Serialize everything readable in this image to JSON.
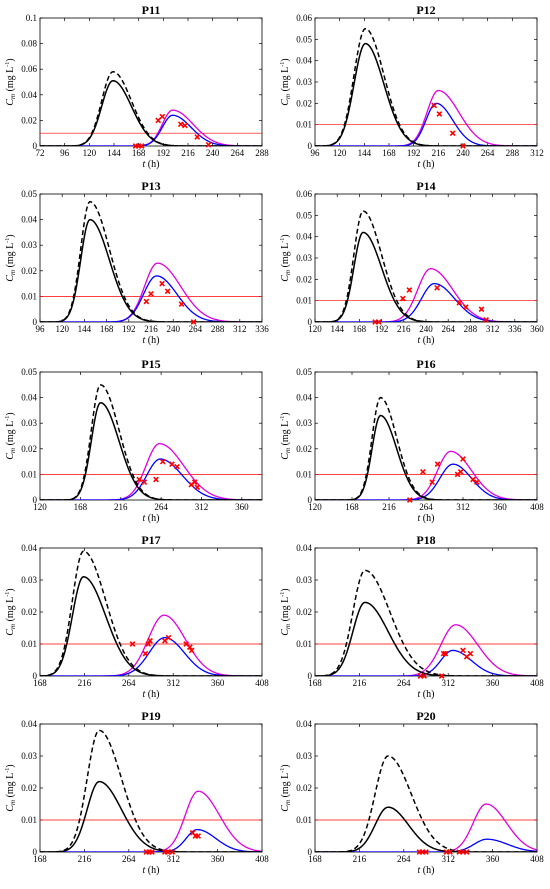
{
  "colors": {
    "black_solid": "#000000",
    "black_dashed": "#000000",
    "blue": "#0000ff",
    "magenta": "#e000e0",
    "threshold": "#ff0000",
    "observed": "#ff0000"
  },
  "chart_data": [
    {
      "type": "line",
      "title": "P11",
      "xlabel": "t (h)",
      "ylabel": "C_m (mg L^-1)",
      "xlim": [
        72,
        288
      ],
      "ylim": [
        0,
        0.1
      ],
      "xticks": [
        "72",
        "96",
        "120",
        "144",
        "168",
        "192",
        "216",
        "240",
        "264",
        "288"
      ],
      "yticks": [
        "0",
        "0.02",
        "0.04",
        "0.06",
        "0.08",
        "0.1"
      ],
      "threshold": 0.01,
      "grid": false,
      "legend": "none",
      "curves": {
        "black_solid": {
          "peak_x": 143,
          "peak_y": 0.051,
          "sigma_left": 11,
          "sigma_right": 18
        },
        "black_dashed": {
          "peak_x": 143,
          "peak_y": 0.058,
          "sigma_left": 11,
          "sigma_right": 18
        },
        "blue": {
          "peak_x": 201,
          "peak_y": 0.024,
          "sigma_left": 10,
          "sigma_right": 18
        },
        "magenta": {
          "peak_x": 201,
          "peak_y": 0.028,
          "sigma_left": 10,
          "sigma_right": 20
        }
      },
      "observed": [
        [
          165,
          0
        ],
        [
          168,
          0
        ],
        [
          171,
          0
        ],
        [
          187,
          0.02
        ],
        [
          191,
          0.023
        ],
        [
          209,
          0.017
        ],
        [
          213,
          0.016
        ],
        [
          225,
          0.007
        ],
        [
          236,
          0.001
        ]
      ]
    },
    {
      "type": "line",
      "title": "P12",
      "xlabel": "t (h)",
      "ylabel": "C_m (mg L^-1)",
      "xlim": [
        96,
        312
      ],
      "ylim": [
        0,
        0.06
      ],
      "xticks": [
        "96",
        "120",
        "144",
        "168",
        "192",
        "216",
        "240",
        "264",
        "288",
        "312"
      ],
      "yticks": [
        "0",
        "0.01",
        "0.02",
        "0.03",
        "0.04",
        "0.05",
        "0.06"
      ],
      "threshold": 0.01,
      "grid": false,
      "legend": "none",
      "curves": {
        "black_solid": {
          "peak_x": 145,
          "peak_y": 0.048,
          "sigma_left": 11,
          "sigma_right": 18
        },
        "black_dashed": {
          "peak_x": 145,
          "peak_y": 0.055,
          "sigma_left": 11,
          "sigma_right": 18
        },
        "blue": {
          "peak_x": 214,
          "peak_y": 0.02,
          "sigma_left": 10,
          "sigma_right": 16
        },
        "magenta": {
          "peak_x": 216,
          "peak_y": 0.026,
          "sigma_left": 11,
          "sigma_right": 20
        }
      },
      "observed": [
        [
          212,
          0.019
        ],
        [
          217,
          0.015
        ],
        [
          230,
          0.006
        ],
        [
          240,
          0
        ]
      ]
    },
    {
      "type": "line",
      "title": "P13",
      "xlabel": "t (h)",
      "ylabel": "C_m (mg L^-1)",
      "xlim": [
        96,
        336
      ],
      "ylim": [
        0,
        0.05
      ],
      "xticks": [
        "96",
        "120",
        "144",
        "168",
        "192",
        "216",
        "240",
        "264",
        "288",
        "312",
        "336"
      ],
      "yticks": [
        "0",
        "0.01",
        "0.02",
        "0.03",
        "0.04",
        "0.05"
      ],
      "threshold": 0.01,
      "grid": false,
      "legend": "none",
      "curves": {
        "black_solid": {
          "peak_x": 150,
          "peak_y": 0.04,
          "sigma_left": 10,
          "sigma_right": 21
        },
        "black_dashed": {
          "peak_x": 150,
          "peak_y": 0.047,
          "sigma_left": 10,
          "sigma_right": 21
        },
        "blue": {
          "peak_x": 222,
          "peak_y": 0.018,
          "sigma_left": 14,
          "sigma_right": 22
        },
        "magenta": {
          "peak_x": 223,
          "peak_y": 0.023,
          "sigma_left": 14,
          "sigma_right": 25
        }
      },
      "observed": [
        [
          211,
          0.008
        ],
        [
          216,
          0.011
        ],
        [
          228,
          0.015
        ],
        [
          234,
          0.012
        ],
        [
          249,
          0.007
        ],
        [
          262,
          0
        ]
      ]
    },
    {
      "type": "line",
      "title": "P14",
      "xlabel": "t (h)",
      "ylabel": "C_m (mg L^-1)",
      "xlim": [
        120,
        360
      ],
      "ylim": [
        0,
        0.06
      ],
      "xticks": [
        "120",
        "144",
        "168",
        "192",
        "216",
        "240",
        "264",
        "288",
        "312",
        "336",
        "360"
      ],
      "yticks": [
        "0",
        "0.01",
        "0.02",
        "0.03",
        "0.04",
        "0.05",
        "0.06"
      ],
      "threshold": 0.01,
      "grid": false,
      "legend": "none",
      "curves": {
        "black_solid": {
          "peak_x": 172,
          "peak_y": 0.042,
          "sigma_left": 10,
          "sigma_right": 20
        },
        "black_dashed": {
          "peak_x": 172,
          "peak_y": 0.052,
          "sigma_left": 10,
          "sigma_right": 20
        },
        "blue": {
          "peak_x": 249,
          "peak_y": 0.018,
          "sigma_left": 14,
          "sigma_right": 22
        },
        "magenta": {
          "peak_x": 245,
          "peak_y": 0.025,
          "sigma_left": 14,
          "sigma_right": 24
        }
      },
      "observed": [
        [
          185,
          0
        ],
        [
          189,
          0
        ],
        [
          215,
          0.011
        ],
        [
          222,
          0.015
        ],
        [
          252,
          0.016
        ],
        [
          276,
          0.009
        ],
        [
          283,
          0.007
        ],
        [
          300,
          0.006
        ],
        [
          305,
          0.001
        ]
      ]
    },
    {
      "type": "line",
      "title": "P15",
      "xlabel": "t (h)",
      "ylabel": "C_m (mg L^-1)",
      "xlim": [
        120,
        384
      ],
      "ylim": [
        0,
        0.05
      ],
      "xticks": [
        "120",
        "168",
        "216",
        "264",
        "312",
        "360"
      ],
      "yticks": [
        "0",
        "0.01",
        "0.02",
        "0.03",
        "0.04",
        "0.05"
      ],
      "threshold": 0.01,
      "grid": false,
      "legend": "none",
      "curves": {
        "black_solid": {
          "peak_x": 192,
          "peak_y": 0.038,
          "sigma_left": 11,
          "sigma_right": 22
        },
        "black_dashed": {
          "peak_x": 192,
          "peak_y": 0.045,
          "sigma_left": 11,
          "sigma_right": 22
        },
        "blue": {
          "peak_x": 263,
          "peak_y": 0.016,
          "sigma_left": 16,
          "sigma_right": 26
        },
        "magenta": {
          "peak_x": 262,
          "peak_y": 0.022,
          "sigma_left": 16,
          "sigma_right": 29
        }
      },
      "observed": [
        [
          238,
          0.008
        ],
        [
          244,
          0.007
        ],
        [
          258,
          0.008
        ],
        [
          266,
          0.015
        ],
        [
          277,
          0.014
        ],
        [
          283,
          0.013
        ],
        [
          300,
          0.006
        ],
        [
          304,
          0.007
        ],
        [
          307,
          0.005
        ]
      ]
    },
    {
      "type": "line",
      "title": "P16",
      "xlabel": "t (h)",
      "ylabel": "C_m (mg L^-1)",
      "xlim": [
        120,
        408
      ],
      "ylim": [
        0,
        0.05
      ],
      "xticks": [
        "120",
        "168",
        "216",
        "264",
        "312",
        "360",
        "408"
      ],
      "yticks": [
        "0",
        "0.01",
        "0.02",
        "0.03",
        "0.04",
        "0.05"
      ],
      "threshold": 0.01,
      "grid": false,
      "legend": "none",
      "curves": {
        "black_solid": {
          "peak_x": 205,
          "peak_y": 0.033,
          "sigma_left": 11,
          "sigma_right": 21
        },
        "black_dashed": {
          "peak_x": 205,
          "peak_y": 0.04,
          "sigma_left": 11,
          "sigma_right": 21
        },
        "blue": {
          "peak_x": 299,
          "peak_y": 0.014,
          "sigma_left": 17,
          "sigma_right": 24
        },
        "magenta": {
          "peak_x": 296,
          "peak_y": 0.019,
          "sigma_left": 17,
          "sigma_right": 27
        }
      },
      "observed": [
        [
          243,
          0
        ],
        [
          260,
          0.011
        ],
        [
          272,
          0.007
        ],
        [
          279,
          0.014
        ],
        [
          305,
          0.01
        ],
        [
          309,
          0.011
        ],
        [
          312,
          0.016
        ],
        [
          325,
          0.008
        ],
        [
          330,
          0.007
        ]
      ]
    },
    {
      "type": "line",
      "title": "P17",
      "xlabel": "t (h)",
      "ylabel": "C_m (mg L^-1)",
      "xlim": [
        168,
        408
      ],
      "ylim": [
        0,
        0.04
      ],
      "xticks": [
        "168",
        "216",
        "264",
        "312",
        "360",
        "408"
      ],
      "yticks": [
        "0",
        "0.01",
        "0.02",
        "0.03",
        "0.04"
      ],
      "threshold": 0.01,
      "grid": false,
      "legend": "none",
      "curves": {
        "black_solid": {
          "peak_x": 215,
          "peak_y": 0.031,
          "sigma_left": 12,
          "sigma_right": 24
        },
        "black_dashed": {
          "peak_x": 215,
          "peak_y": 0.039,
          "sigma_left": 12,
          "sigma_right": 24
        },
        "blue": {
          "peak_x": 303,
          "peak_y": 0.012,
          "sigma_left": 17,
          "sigma_right": 21
        },
        "magenta": {
          "peak_x": 302,
          "peak_y": 0.019,
          "sigma_left": 17,
          "sigma_right": 23
        }
      },
      "observed": [
        [
          268,
          0.01
        ],
        [
          282,
          0.007
        ],
        [
          285,
          0.01
        ],
        [
          287,
          0.011
        ],
        [
          303,
          0.011
        ],
        [
          307,
          0.012
        ],
        [
          326,
          0.01
        ],
        [
          330,
          0.009
        ],
        [
          332,
          0.008
        ]
      ]
    },
    {
      "type": "line",
      "title": "P18",
      "xlabel": "t (h)",
      "ylabel": "C_m (mg L^-1)",
      "xlim": [
        168,
        408
      ],
      "ylim": [
        0,
        0.04
      ],
      "xticks": [
        "168",
        "216",
        "264",
        "312",
        "360",
        "408"
      ],
      "yticks": [
        "0",
        "0.01",
        "0.02",
        "0.03",
        "0.04"
      ],
      "threshold": 0.01,
      "grid": false,
      "legend": "none",
      "curves": {
        "black_solid": {
          "peak_x": 222,
          "peak_y": 0.023,
          "sigma_left": 13,
          "sigma_right": 25
        },
        "black_dashed": {
          "peak_x": 222,
          "peak_y": 0.033,
          "sigma_left": 13,
          "sigma_right": 27
        },
        "blue": {
          "peak_x": 317,
          "peak_y": 0.008,
          "sigma_left": 13,
          "sigma_right": 20
        },
        "magenta": {
          "peak_x": 320,
          "peak_y": 0.016,
          "sigma_left": 16,
          "sigma_right": 24
        }
      },
      "observed": [
        [
          282,
          0
        ],
        [
          286,
          0
        ],
        [
          305,
          0
        ],
        [
          307,
          0.007
        ],
        [
          309,
          0.007
        ],
        [
          328,
          0.008
        ],
        [
          332,
          0.006
        ],
        [
          336,
          0.007
        ]
      ]
    },
    {
      "type": "line",
      "title": "P19",
      "xlabel": "t (h)",
      "ylabel": "C_m (mg L^-1)",
      "xlim": [
        168,
        408
      ],
      "ylim": [
        0,
        0.04
      ],
      "xticks": [
        "168",
        "216",
        "264",
        "312",
        "360",
        "408"
      ],
      "yticks": [
        "0",
        "0.01",
        "0.02",
        "0.03",
        "0.04"
      ],
      "threshold": 0.01,
      "grid": false,
      "legend": "none",
      "curves": {
        "black_solid": {
          "peak_x": 232,
          "peak_y": 0.022,
          "sigma_left": 13,
          "sigma_right": 24
        },
        "black_dashed": {
          "peak_x": 232,
          "peak_y": 0.038,
          "sigma_left": 13,
          "sigma_right": 24
        },
        "blue": {
          "peak_x": 338,
          "peak_y": 0.007,
          "sigma_left": 12,
          "sigma_right": 20
        },
        "magenta": {
          "peak_x": 339,
          "peak_y": 0.019,
          "sigma_left": 14,
          "sigma_right": 23
        }
      },
      "observed": [
        [
          283,
          0
        ],
        [
          286,
          0
        ],
        [
          289,
          0
        ],
        [
          303,
          0
        ],
        [
          306,
          0
        ],
        [
          311,
          0
        ],
        [
          333,
          0.006
        ],
        [
          336,
          0.005
        ],
        [
          339,
          0.005
        ]
      ]
    },
    {
      "type": "line",
      "title": "P20",
      "xlabel": "t (h)",
      "ylabel": "C_m (mg L^-1)",
      "xlim": [
        168,
        408
      ],
      "ylim": [
        0,
        0.04
      ],
      "xticks": [
        "168",
        "216",
        "264",
        "312",
        "360",
        "408"
      ],
      "yticks": [
        "0",
        "0.01",
        "0.02",
        "0.03",
        "0.04"
      ],
      "threshold": 0.01,
      "grid": false,
      "legend": "none",
      "curves": {
        "black_solid": {
          "peak_x": 247,
          "peak_y": 0.014,
          "sigma_left": 14,
          "sigma_right": 22
        },
        "black_dashed": {
          "peak_x": 247,
          "peak_y": 0.03,
          "sigma_left": 14,
          "sigma_right": 25
        },
        "blue": {
          "peak_x": 354,
          "peak_y": 0.004,
          "sigma_left": 14,
          "sigma_right": 22
        },
        "magenta": {
          "peak_x": 353,
          "peak_y": 0.015,
          "sigma_left": 14,
          "sigma_right": 22
        }
      },
      "observed": [
        [
          281,
          0
        ],
        [
          284,
          0
        ],
        [
          288,
          0
        ],
        [
          310,
          0
        ],
        [
          314,
          0
        ],
        [
          324,
          0
        ],
        [
          328,
          0
        ],
        [
          332,
          0
        ]
      ]
    }
  ]
}
